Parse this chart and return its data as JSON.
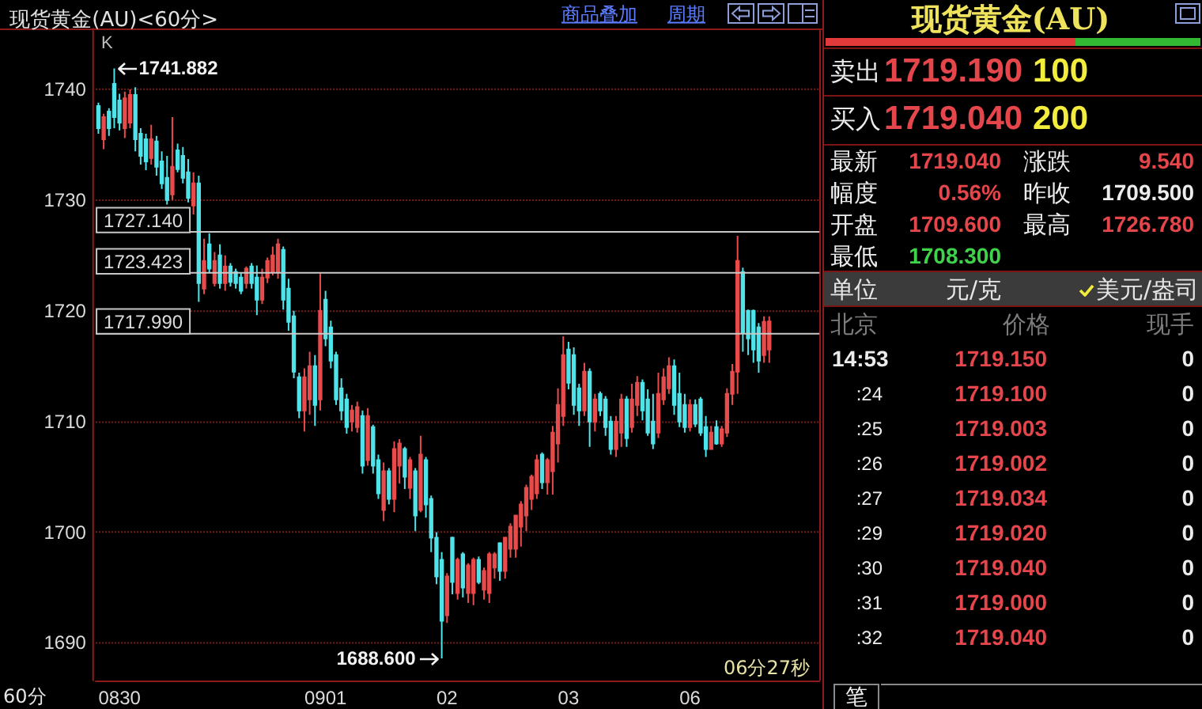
{
  "chart_data": [
    {
      "type": "candlestick",
      "title": "现货黄金(AU)<60分>",
      "categories": [
        null,
        null,
        null,
        null,
        "0830",
        null,
        null,
        null,
        null,
        null,
        null,
        null,
        null,
        null,
        null,
        null,
        null,
        null,
        null,
        null,
        null,
        null,
        null,
        null,
        null,
        null,
        null,
        null,
        null,
        null,
        null,
        null,
        null,
        null,
        null,
        null,
        null,
        null,
        null,
        null,
        null,
        null,
        null,
        "0901",
        null,
        null,
        null,
        null,
        null,
        null,
        null,
        null,
        null,
        null,
        null,
        null,
        null,
        null,
        null,
        null,
        null,
        null,
        null,
        null,
        null,
        null,
        "02",
        null,
        null,
        null,
        null,
        null,
        null,
        null,
        null,
        null,
        null,
        null,
        null,
        null,
        null,
        null,
        null,
        null,
        null,
        null,
        null,
        null,
        null,
        "03",
        null,
        null,
        null,
        null,
        null,
        null,
        null,
        null,
        null,
        null,
        null,
        null,
        null,
        null,
        null,
        null,
        null,
        null,
        null,
        null,
        null,
        null,
        "06",
        null,
        null,
        null,
        null,
        null,
        null,
        null,
        null,
        null,
        null,
        null,
        null,
        null,
        null,
        null,
        null,
        null,
        null,
        null,
        null,
        null,
        null,
        null,
        null
      ],
      "ohlc": [
        [
          1738.5,
          1738.8,
          1736.0,
          1736.5
        ],
        [
          1735.5,
          1737.8,
          1734.6,
          1737.5
        ],
        [
          1738.0,
          1738.3,
          1735.8,
          1736.5
        ],
        [
          1740.5,
          1741.882,
          1736.5,
          1737.5
        ],
        [
          1739.0,
          1739.6,
          1736.3,
          1737.0
        ],
        [
          1736.5,
          1739.8,
          1735.6,
          1739.2
        ],
        [
          1737.0,
          1740.0,
          1736.5,
          1739.5
        ],
        [
          1739.5,
          1740.2,
          1734.4,
          1735.5
        ],
        [
          1736.0,
          1736.5,
          1733.2,
          1734.0
        ],
        [
          1735.5,
          1736.0,
          1732.7,
          1733.5
        ],
        [
          1733.8,
          1736.8,
          1733.2,
          1735.5
        ],
        [
          1735.3,
          1735.8,
          1732.2,
          1733.0
        ],
        [
          1733.5,
          1734.4,
          1731.0,
          1731.5
        ],
        [
          1732.0,
          1734.0,
          1729.6,
          1730.0
        ],
        [
          1730.5,
          1737.5,
          1730.0,
          1733.0
        ],
        [
          1734.5,
          1735.1,
          1732.5,
          1732.8
        ],
        [
          1734.0,
          1734.8,
          1731.5,
          1732.0
        ],
        [
          1732.5,
          1733.7,
          1729.8,
          1730.2
        ],
        [
          1729.5,
          1732.5,
          1728.7,
          1731.5
        ],
        [
          1731.5,
          1732.2,
          1720.8,
          1722.5
        ],
        [
          1722.0,
          1726.5,
          1721.5,
          1724.5
        ],
        [
          1726.0,
          1727.0,
          1723.4,
          1723.8
        ],
        [
          1722.5,
          1725.3,
          1722.2,
          1724.5
        ],
        [
          1725.0,
          1726.0,
          1722.0,
          1722.5
        ],
        [
          1722.5,
          1725.0,
          1721.8,
          1724.0
        ],
        [
          1724.0,
          1724.3,
          1722.2,
          1722.6
        ],
        [
          1723.5,
          1723.8,
          1722.0,
          1722.5
        ],
        [
          1723.0,
          1723.4,
          1721.5,
          1721.8
        ],
        [
          1722.5,
          1724.0,
          1722.0,
          1723.8
        ],
        [
          1724.0,
          1724.3,
          1722.0,
          1722.5
        ],
        [
          1723.0,
          1724.1,
          1719.6,
          1721.0
        ],
        [
          1721.0,
          1723.8,
          1720.6,
          1723.0
        ],
        [
          1723.0,
          1724.8,
          1722.5,
          1724.5
        ],
        [
          1723.5,
          1725.8,
          1723.2,
          1725.0
        ],
        [
          1723.5,
          1726.5,
          1722.9,
          1726.0
        ],
        [
          1725.5,
          1725.8,
          1720.1,
          1721.0
        ],
        [
          1722.0,
          1722.9,
          1718.2,
          1719.0
        ],
        [
          1719.5,
          1720.0,
          1713.9,
          1714.5
        ],
        [
          1714.0,
          1714.4,
          1710.3,
          1711.0
        ],
        [
          1711.0,
          1714.8,
          1709.1,
          1714.0
        ],
        [
          1712.0,
          1716.3,
          1710.6,
          1715.0
        ],
        [
          1715.0,
          1716.0,
          1709.6,
          1711.5
        ],
        [
          1712.0,
          1723.4,
          1711.0,
          1720.0
        ],
        [
          1721.0,
          1721.8,
          1716.8,
          1717.5
        ],
        [
          1718.5,
          1719.1,
          1714.8,
          1715.5
        ],
        [
          1716.0,
          1716.3,
          1711.5,
          1712.0
        ],
        [
          1713.0,
          1713.9,
          1710.1,
          1711.0
        ],
        [
          1712.0,
          1712.5,
          1708.9,
          1709.5
        ],
        [
          1710.0,
          1711.5,
          1709.1,
          1711.0
        ],
        [
          1709.5,
          1711.8,
          1709.0,
          1711.3
        ],
        [
          1710.5,
          1711.0,
          1705.3,
          1706.0
        ],
        [
          1706.5,
          1711.2,
          1706.0,
          1710.5
        ],
        [
          1709.5,
          1709.7,
          1705.3,
          1706.0
        ],
        [
          1706.5,
          1707.0,
          1703.0,
          1703.5
        ],
        [
          1702.0,
          1706.3,
          1701.0,
          1705.5
        ],
        [
          1705.5,
          1705.8,
          1702.5,
          1703.0
        ],
        [
          1703.0,
          1708.2,
          1701.8,
          1707.5
        ],
        [
          1706.0,
          1708.4,
          1704.4,
          1708.0
        ],
        [
          1707.5,
          1707.7,
          1703.9,
          1705.0
        ],
        [
          1704.0,
          1706.8,
          1703.0,
          1706.5
        ],
        [
          1705.5,
          1705.8,
          1700.1,
          1701.5
        ],
        [
          1702.0,
          1708.7,
          1701.8,
          1707.0
        ],
        [
          1706.5,
          1706.8,
          1701.3,
          1702.5
        ],
        [
          1703.0,
          1703.3,
          1698.2,
          1699.5
        ],
        [
          1699.5,
          1700.0,
          1695.3,
          1696.0
        ],
        [
          1697.5,
          1698.2,
          1688.6,
          1692.0
        ],
        [
          1692.5,
          1696.3,
          1691.8,
          1696.0
        ],
        [
          1699.5,
          1699.6,
          1694.4,
          1695.5
        ],
        [
          1694.5,
          1697.7,
          1693.9,
          1697.5
        ],
        [
          1698.0,
          1698.2,
          1694.1,
          1695.0
        ],
        [
          1694.5,
          1697.2,
          1693.6,
          1697.0
        ],
        [
          1694.5,
          1697.7,
          1693.4,
          1697.5
        ],
        [
          1697.5,
          1697.8,
          1695.3,
          1695.5
        ],
        [
          1694.8,
          1696.8,
          1693.9,
          1696.5
        ],
        [
          1694.5,
          1698.2,
          1693.6,
          1698.0
        ],
        [
          1696.8,
          1698.2,
          1695.8,
          1698.0
        ],
        [
          1699.0,
          1699.1,
          1695.6,
          1696.5
        ],
        [
          1696.5,
          1699.6,
          1695.8,
          1699.5
        ],
        [
          1698.5,
          1700.8,
          1697.7,
          1700.5
        ],
        [
          1698.5,
          1701.5,
          1697.7,
          1701.5
        ],
        [
          1700.5,
          1702.8,
          1698.7,
          1702.5
        ],
        [
          1701.5,
          1704.3,
          1700.1,
          1704.0
        ],
        [
          1703.0,
          1705.2,
          1702.0,
          1705.0
        ],
        [
          1703.5,
          1707.0,
          1703.0,
          1706.5
        ],
        [
          1707.0,
          1707.2,
          1703.9,
          1704.5
        ],
        [
          1704.5,
          1706.7,
          1703.4,
          1706.5
        ],
        [
          1705.5,
          1709.6,
          1703.4,
          1709.0
        ],
        [
          1708.0,
          1713.0,
          1706.3,
          1711.5
        ],
        [
          1710.5,
          1717.7,
          1709.6,
          1716.0
        ],
        [
          1716.5,
          1717.2,
          1712.9,
          1713.5
        ],
        [
          1716.0,
          1716.7,
          1710.6,
          1711.5
        ],
        [
          1713.0,
          1713.4,
          1709.6,
          1711.0
        ],
        [
          1711.0,
          1715.3,
          1710.5,
          1714.5
        ],
        [
          1714.5,
          1714.8,
          1707.7,
          1710.0
        ],
        [
          1710.0,
          1712.5,
          1709.1,
          1712.0
        ],
        [
          1712.5,
          1712.7,
          1710.5,
          1711.0
        ],
        [
          1712.0,
          1712.3,
          1708.7,
          1709.5
        ],
        [
          1710.0,
          1710.5,
          1707.0,
          1707.5
        ],
        [
          1707.5,
          1710.5,
          1706.8,
          1710.0
        ],
        [
          1709.0,
          1712.5,
          1707.7,
          1712.0
        ],
        [
          1712.0,
          1712.3,
          1707.7,
          1708.5
        ],
        [
          1709.5,
          1713.4,
          1709.0,
          1712.0
        ],
        [
          1711.5,
          1714.1,
          1710.5,
          1713.5
        ],
        [
          1713.5,
          1713.8,
          1710.1,
          1711.0
        ],
        [
          1712.0,
          1712.9,
          1708.7,
          1709.0
        ],
        [
          1710.0,
          1712.5,
          1707.5,
          1708.0
        ],
        [
          1709.0,
          1714.4,
          1708.5,
          1712.5
        ],
        [
          1712.0,
          1714.8,
          1711.5,
          1714.0
        ],
        [
          1713.0,
          1715.8,
          1712.5,
          1715.0
        ],
        [
          1715.0,
          1715.6,
          1710.6,
          1711.5
        ],
        [
          1712.5,
          1714.4,
          1709.5,
          1710.0
        ],
        [
          1711.5,
          1712.5,
          1709.0,
          1709.5
        ],
        [
          1709.5,
          1712.0,
          1709.1,
          1711.5
        ],
        [
          1711.5,
          1712.0,
          1709.5,
          1709.8
        ],
        [
          1712.0,
          1712.2,
          1708.7,
          1709.0
        ],
        [
          1709.5,
          1710.5,
          1706.8,
          1707.5
        ],
        [
          1707.5,
          1709.6,
          1707.5,
          1709.0
        ],
        [
          1709.5,
          1710.1,
          1707.9,
          1708.0
        ],
        [
          1708.0,
          1709.6,
          1707.7,
          1709.3
        ],
        [
          1709.0,
          1713.0,
          1708.6,
          1712.5
        ],
        [
          1712.5,
          1715.2,
          1711.5,
          1714.5
        ],
        [
          1714.5,
          1726.78,
          1712.5,
          1724.5
        ],
        [
          1723.5,
          1723.9,
          1716.3,
          1718.0
        ],
        [
          1720.0,
          1720.1,
          1716.0,
          1717.5
        ],
        [
          1720.0,
          1720.1,
          1715.3,
          1716.5
        ],
        [
          1718.5,
          1718.9,
          1714.4,
          1715.5
        ],
        [
          1716.0,
          1719.5,
          1715.3,
          1719.0
        ],
        [
          1716.5,
          1719.5,
          1715.3,
          1719.04
        ],
        null,
        null,
        null,
        null,
        null,
        null,
        null,
        null,
        null
      ],
      "ylim": [
        1686.6,
        1745.5
      ],
      "yticks": [
        1690,
        1700,
        1710,
        1720,
        1730,
        1740
      ],
      "grid": "y",
      "ref_lines": [
        {
          "axis": "y",
          "value": 1727.14,
          "label": "1727.140",
          "color": "#c8c8c8"
        },
        {
          "axis": "y",
          "value": 1723.423,
          "label": "1723.423",
          "color": "#c8c8c8"
        },
        {
          "axis": "y",
          "value": 1717.99,
          "label": "1717.990",
          "color": "#c8c8c8"
        }
      ],
      "annotations": [
        "K",
        "1741.882",
        "1688.600",
        "商品叠加",
        "周期",
        "60分",
        "06分27秒"
      ]
    },
    {
      "type": "other",
      "title": "现货黄金(AU)",
      "annotations": [
        "卖出",
        "1719.190",
        "100",
        "买入",
        "1719.040",
        "200",
        "最新",
        "1719.040",
        "涨跌",
        "9.540",
        "幅度",
        "0.56%",
        "昨收",
        "1709.500",
        "开盘",
        "1709.600",
        "最高",
        "1726.780",
        "最低",
        "1708.300",
        "单位",
        "元/克",
        "美元/盎司",
        "北京",
        "价格",
        "现手",
        "14:53",
        "1719.150",
        "0",
        ":24",
        "1719.100",
        "0",
        ":25",
        "1719.003",
        "0",
        ":26",
        "1719.002",
        "0",
        ":27",
        "1719.034",
        "0",
        ":29",
        "1719.020",
        "0",
        ":30",
        "1719.040",
        "0",
        ":31",
        "1719.000",
        "0",
        ":32",
        "1719.040",
        "0",
        "笔"
      ]
    }
  ]
}
